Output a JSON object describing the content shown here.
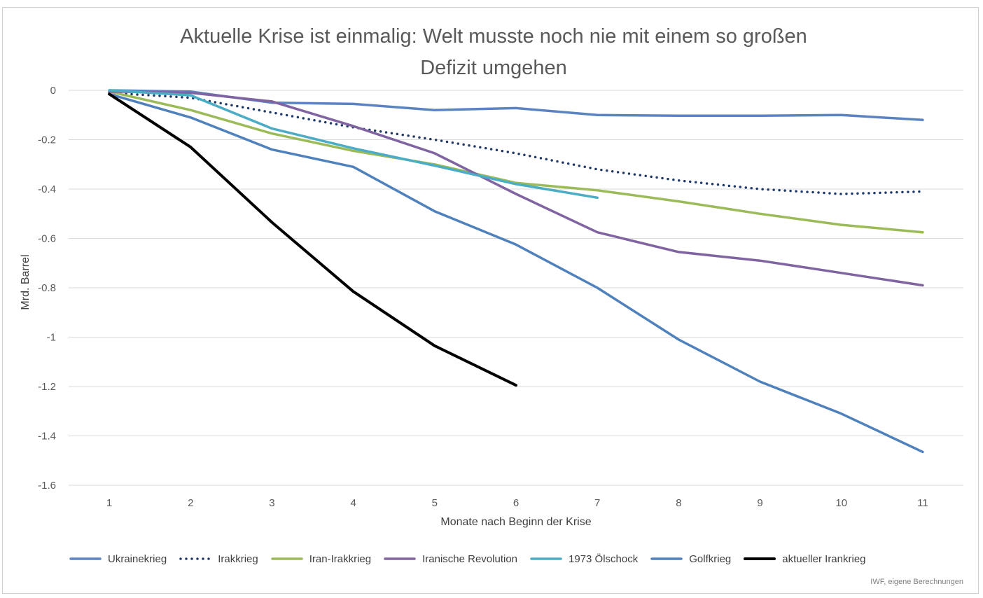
{
  "chart_data": {
    "type": "line",
    "title": "Aktuelle Krise ist einmalig: Welt musste noch nie mit einem so großen Defizit umgehen",
    "title_lines": [
      "Aktuelle Krise ist einmalig: Welt musste noch nie mit einem so großen",
      "Defizit umgehen"
    ],
    "xlabel": "Monate nach Beginn der Krise",
    "ylabel": "Mrd. Barrel",
    "x": [
      1,
      2,
      3,
      4,
      5,
      6,
      7,
      8,
      9,
      10,
      11
    ],
    "xlim": [
      1,
      11
    ],
    "ylim": [
      -1.6,
      0
    ],
    "yticks": [
      0,
      -0.2,
      -0.4,
      -0.6,
      -0.8,
      -1,
      -1.2,
      -1.4,
      -1.6
    ],
    "ytick_labels": [
      "0",
      "-0.2",
      "-0.4",
      "-0.6",
      "-0.8",
      "-1",
      "-1.2",
      "-1.4",
      "-1.6"
    ],
    "grid": "horizontal",
    "legend_position": "bottom",
    "series": [
      {
        "name": "Ukrainekrieg",
        "color": "#5b83c2",
        "style": "solid",
        "values": [
          0.0,
          -0.005,
          -0.05,
          -0.055,
          -0.08,
          -0.072,
          -0.1,
          -0.103,
          -0.103,
          -0.1,
          -0.12
        ]
      },
      {
        "name": "Irakkrieg",
        "color": "#1f3864",
        "style": "dotted",
        "values": [
          -0.01,
          -0.03,
          -0.09,
          -0.15,
          -0.2,
          -0.255,
          -0.32,
          -0.365,
          -0.4,
          -0.42,
          -0.41
        ]
      },
      {
        "name": "Iran-Irakkrieg",
        "color": "#9bbb59",
        "style": "solid",
        "values": [
          -0.005,
          -0.08,
          -0.175,
          -0.245,
          -0.3,
          -0.375,
          -0.405,
          -0.45,
          -0.5,
          -0.545,
          -0.575
        ]
      },
      {
        "name": "Iranische Revolution",
        "color": "#8064a2",
        "style": "solid",
        "values": [
          -0.005,
          -0.01,
          -0.045,
          -0.145,
          -0.255,
          -0.42,
          -0.575,
          -0.655,
          -0.69,
          -0.74,
          -0.79
        ]
      },
      {
        "name": "1973 Ölschock",
        "color": "#4bacc6",
        "style": "solid",
        "values": [
          0.0,
          -0.02,
          -0.155,
          -0.235,
          -0.305,
          -0.38,
          -0.435,
          null,
          null,
          null,
          null
        ]
      },
      {
        "name": "Golfkrieg",
        "color": "#4f81bd",
        "style": "solid",
        "values": [
          -0.015,
          -0.11,
          -0.24,
          -0.31,
          -0.49,
          -0.625,
          -0.8,
          -1.01,
          -1.18,
          -1.31,
          -1.465
        ]
      },
      {
        "name": "aktueller Irankrieg",
        "color": "#000000",
        "style": "solid",
        "values": [
          -0.015,
          -0.23,
          -0.535,
          -0.815,
          -1.035,
          -1.195,
          null,
          null,
          null,
          null,
          null
        ]
      }
    ],
    "source": "IWF, eigene Berechnungen"
  }
}
